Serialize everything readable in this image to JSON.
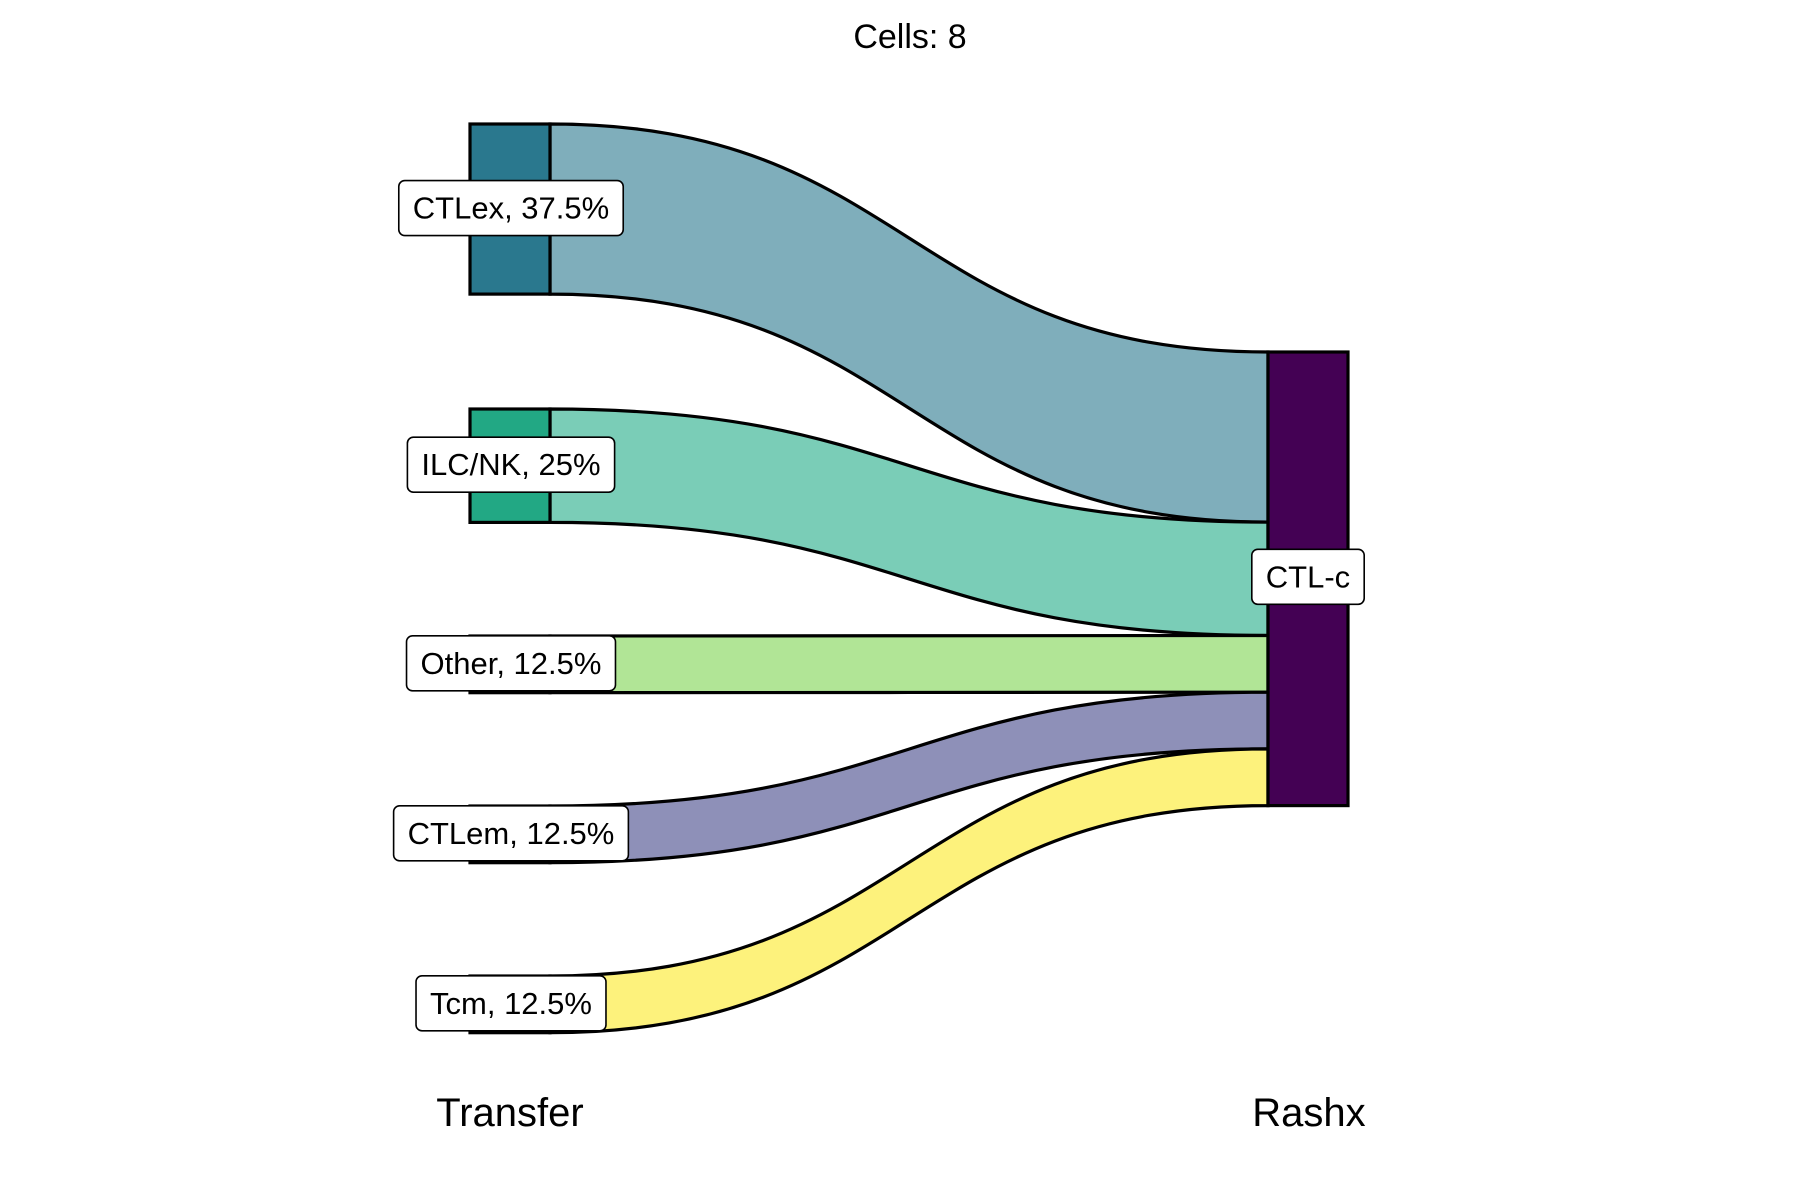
{
  "chart_data": {
    "type": "sankey",
    "title": "Cells:  8",
    "axes": [
      "Transfer",
      "Rashx"
    ],
    "sources": [
      {
        "name": "CTLex",
        "label": "CTLex, 37.5%",
        "count": 3,
        "color": "#2A788E",
        "flow_color": "#7FAEBB"
      },
      {
        "name": "ILC/NK",
        "label": "ILC/NK, 25%",
        "count": 2,
        "color": "#22A884",
        "flow_color": "#7ACDB7"
      },
      {
        "name": "Other",
        "label": "Other, 12.5%",
        "count": 1,
        "color": "#B1E596",
        "flow_color": "#B1E596"
      },
      {
        "name": "CTLem",
        "label": "CTLem, 12.5%",
        "count": 1,
        "color": "#8E90B8",
        "flow_color": "#8E90B8"
      },
      {
        "name": "Tcm",
        "label": "Tcm, 12.5%",
        "count": 1,
        "color": "#FDF27C",
        "flow_color": "#FDF27C"
      }
    ],
    "targets": [
      {
        "name": "CTL-c",
        "label": "CTL-c",
        "count": 8,
        "color": "#440154"
      }
    ],
    "flows": [
      {
        "source": "CTLex",
        "target": "CTL-c",
        "value": 3
      },
      {
        "source": "ILC/NK",
        "target": "CTL-c",
        "value": 2
      },
      {
        "source": "Other",
        "target": "CTL-c",
        "value": 1
      },
      {
        "source": "CTLem",
        "target": "CTL-c",
        "value": 1
      },
      {
        "source": "Tcm",
        "target": "CTL-c",
        "value": 1
      }
    ]
  }
}
